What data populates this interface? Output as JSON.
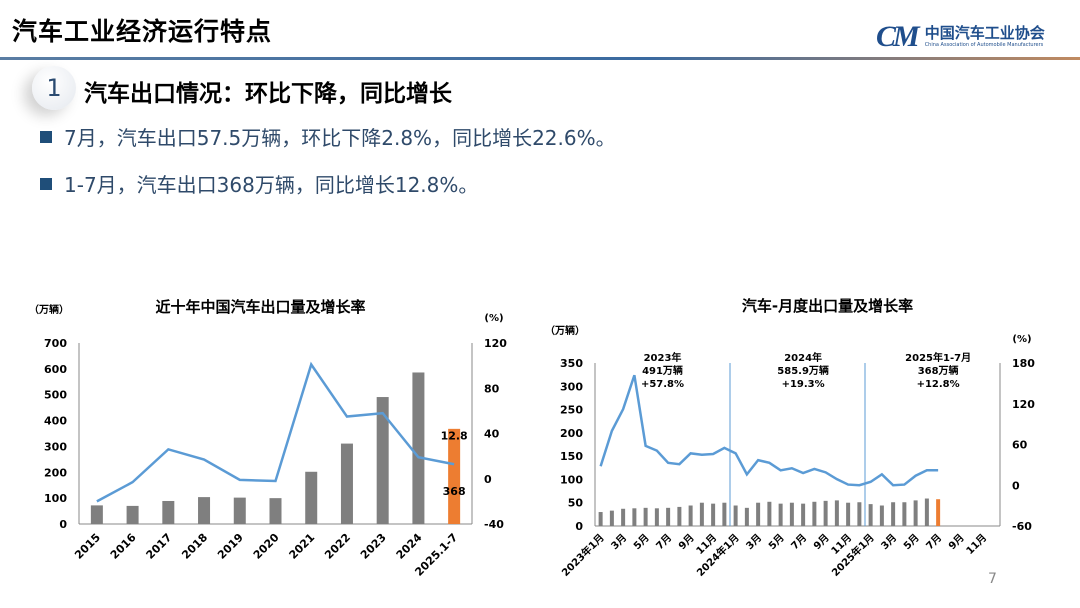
{
  "header": {
    "title": "汽车工业经济运行特点",
    "logo_mark": "CM",
    "logo_cn": "中国汽车工业协会",
    "logo_en": "China Association of Automobile Manufacturers"
  },
  "section": {
    "number": "1",
    "heading": "汽车出口情况：环比下降，同比增长"
  },
  "bullets": [
    "7月，汽车出口57.5万辆，环比下降2.8%，同比增长22.6%。",
    "1-7月，汽车出口368万辆，同比增长12.8%。"
  ],
  "page_number": "7",
  "colors": {
    "bar": "#7f7f7f",
    "bar_highlight": "#ed7d31",
    "line": "#5b9bd5",
    "accent": "#1f4e79"
  },
  "chart_data": [
    {
      "type": "bar+line",
      "title": "近十年中国汽车出口量及增长率",
      "ylabel": "（万辆）",
      "y2label": "(%)",
      "categories": [
        "2015",
        "2016",
        "2017",
        "2018",
        "2019",
        "2020",
        "2021",
        "2022",
        "2023",
        "2024",
        "2025.1-7"
      ],
      "ylim": [
        0,
        700
      ],
      "yticks": [
        0,
        100,
        200,
        300,
        400,
        500,
        600,
        700
      ],
      "y2lim": [
        -40,
        120
      ],
      "y2ticks": [
        -40,
        0,
        40,
        80,
        120
      ],
      "series": [
        {
          "type": "bar",
          "values": [
            72,
            70,
            89,
            104,
            102,
            100,
            202,
            311,
            491,
            586,
            368
          ]
        },
        {
          "type": "line",
          "axis": "right",
          "values": [
            -20,
            -3,
            26,
            17,
            -1,
            -2,
            101,
            55,
            58,
            19,
            12.8
          ]
        }
      ],
      "data_labels": {
        "bar_last": "368",
        "line_last": "12.8"
      },
      "grid": false
    },
    {
      "type": "bar+line",
      "title": "汽车-月度出口量及增长率",
      "ylabel": "（万辆）",
      "y2label": "(%)",
      "xtick_labels": [
        "2023年1月",
        "3月",
        "5月",
        "7月",
        "9月",
        "11月",
        "2024年1月",
        "3月",
        "5月",
        "7月",
        "9月",
        "11月",
        "2025年1月",
        "3月",
        "5月",
        "7月",
        "9月",
        "11月"
      ],
      "x_months": 36,
      "ylim": [
        0,
        350
      ],
      "yticks": [
        0,
        50,
        100,
        150,
        200,
        250,
        300,
        350
      ],
      "y2lim": [
        -60,
        180
      ],
      "y2ticks": [
        -60,
        0,
        60,
        120,
        180
      ],
      "series": [
        {
          "type": "bar",
          "values": [
            30,
            33,
            37,
            38,
            39,
            38,
            39,
            41,
            44,
            50,
            48,
            50,
            44,
            39,
            50,
            52,
            48,
            50,
            48,
            52,
            54,
            55,
            50,
            51,
            47,
            44,
            51,
            51,
            55,
            59,
            57.5
          ]
        },
        {
          "type": "line",
          "axis": "right",
          "values": [
            28,
            80,
            112,
            162,
            58,
            51,
            33,
            31,
            47,
            45,
            46,
            55,
            47,
            16,
            37,
            33,
            22,
            25,
            18,
            24,
            19,
            9,
            1,
            0,
            5,
            16,
            0,
            1,
            14,
            22,
            22
          ]
        }
      ],
      "annotations": [
        {
          "lines": [
            "2023年",
            "491万辆",
            "+57.8%"
          ]
        },
        {
          "lines": [
            "2024年",
            "585.9万辆",
            "+19.3%"
          ]
        },
        {
          "lines": [
            "2025年1-7月",
            "368万辆",
            "+12.8%"
          ]
        }
      ],
      "grid": false
    }
  ]
}
